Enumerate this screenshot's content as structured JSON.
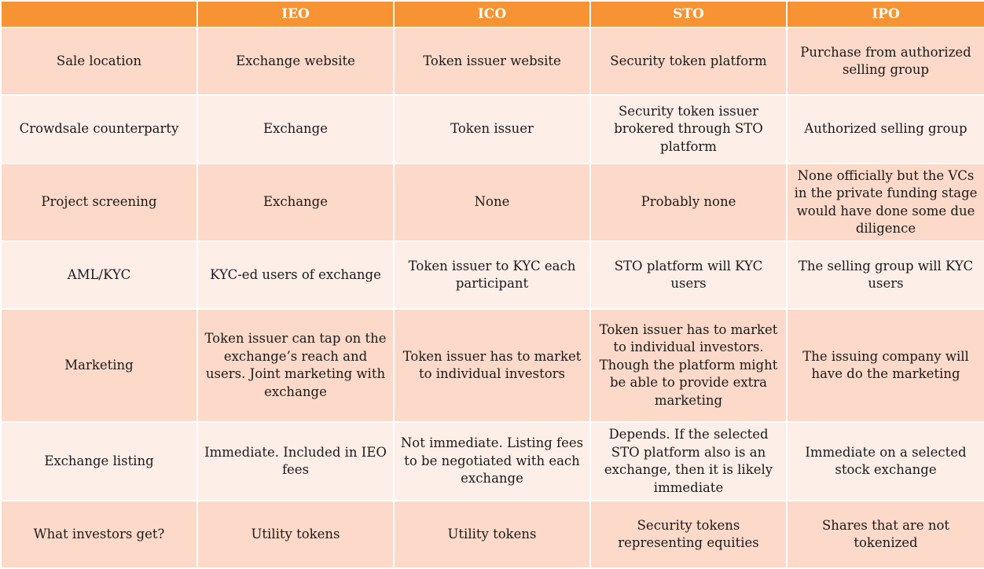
{
  "table": {
    "headers": [
      "",
      "IEO",
      "ICO",
      "STO",
      "IPO"
    ],
    "rows": [
      {
        "label": "Sale location",
        "cells": [
          "Exchange website",
          "Token issuer website",
          "Security token platform",
          "Purchase from authorized selling group"
        ]
      },
      {
        "label": "Crowdsale counterparty",
        "cells": [
          "Exchange",
          "Token issuer",
          "Security token issuer brokered through STO platform",
          "Authorized selling group"
        ]
      },
      {
        "label": "Project screening",
        "cells": [
          "Exchange",
          "None",
          "Probably none",
          "None officially but the VCs in the private funding stage would have done some due diligence"
        ]
      },
      {
        "label": "AML/KYC",
        "cells": [
          "KYC-ed users of exchange",
          "Token issuer to KYC each participant",
          "STO platform will KYC users",
          "The selling group will KYC users"
        ]
      },
      {
        "label": "Marketing",
        "cells": [
          "Token issuer can tap on the exchange’s reach and users. Joint marketing with exchange",
          "Token issuer has to market to individual investors",
          "Token issuer has to market to individual investors. Though the platform might be able to provide extra marketing",
          "The issuing company will have do the marketing"
        ]
      },
      {
        "label": "Exchange listing",
        "cells": [
          "Immediate. Included in IEO fees",
          "Not immediate. Listing fees to be negotiated with each exchange",
          "Depends. If the selected STO platform also is an exchange, then it is likely immediate",
          "Immediate on a selected stock exchange"
        ]
      },
      {
        "label": "What investors get?",
        "cells": [
          "Utility tokens",
          "Utility tokens",
          "Security tokens representing equities",
          "Shares that are not tokenized"
        ]
      }
    ]
  },
  "colors": {
    "header_bg": "#f79332",
    "row_odd_bg": "#fdd9c9",
    "row_even_bg": "#feeee8",
    "border": "#ffffff"
  }
}
